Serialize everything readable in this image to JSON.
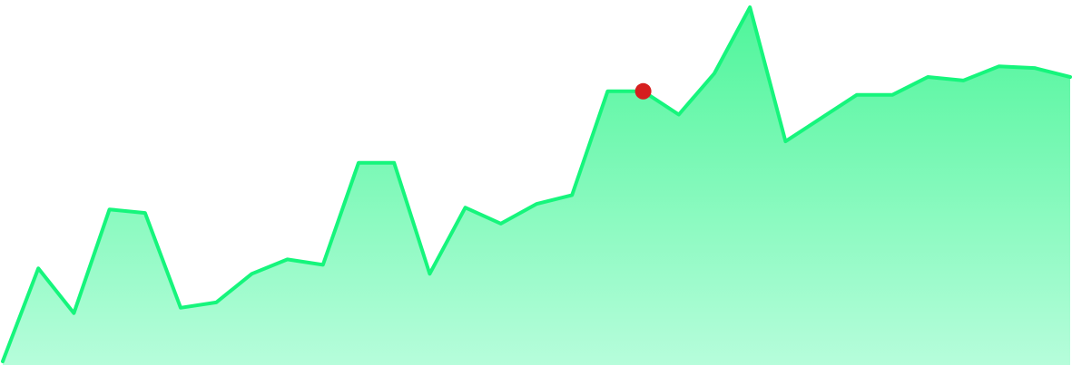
{
  "chart_data": {
    "type": "area",
    "title": "",
    "xlabel": "",
    "ylabel": "",
    "grid": false,
    "legend": "none",
    "ylim": [
      0,
      100
    ],
    "x": [
      0,
      1,
      2,
      3,
      4,
      5,
      6,
      7,
      8,
      9,
      10,
      11,
      12,
      13,
      14,
      15,
      16,
      17,
      18,
      19,
      20,
      21,
      22,
      23,
      24,
      25,
      26,
      27,
      28,
      29,
      30
    ],
    "series": [
      {
        "values": [
          0.5,
          26.5,
          14.0,
          43.0,
          42.0,
          15.5,
          17.0,
          25.0,
          29.0,
          27.5,
          56.0,
          56.0,
          25.0,
          43.5,
          39.0,
          44.5,
          47.0,
          76.0,
          76.0,
          69.5,
          81.0,
          99.5,
          62.0,
          68.5,
          75.0,
          75.0,
          80.0,
          79.0,
          83.0,
          82.5,
          80.0
        ],
        "color": "#16f57c",
        "fill_top": "#4ef59a",
        "fill_bottom": "#b6fddb"
      }
    ],
    "highlight": {
      "index": 18,
      "color": "#d61f1f"
    }
  }
}
